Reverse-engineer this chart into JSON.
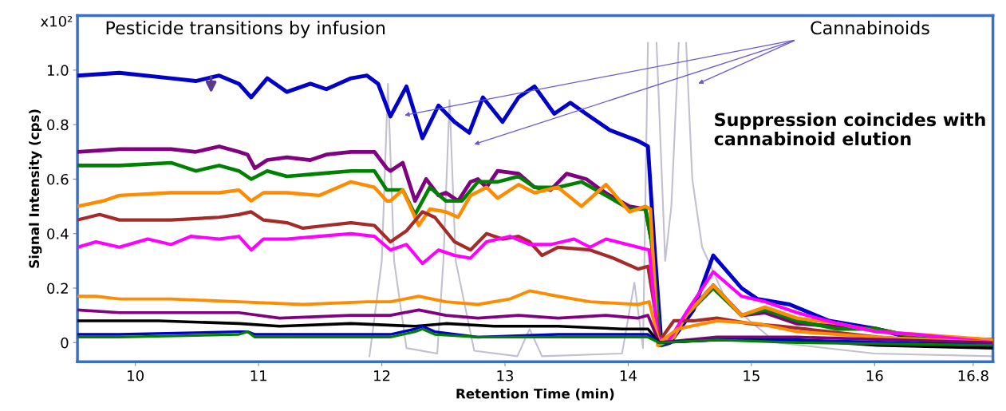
{
  "chart_data": {
    "type": "line",
    "xlabel": "Retention Time (min)",
    "ylabel": "Signal Intensity (cps)",
    "xlim": [
      9.53,
      16.96
    ],
    "xticks": [
      10,
      11,
      12,
      13,
      14,
      15,
      16,
      16.8
    ],
    "ylim": [
      -0.07,
      1.2
    ],
    "yticks": [
      0,
      0.2,
      0.4,
      0.6,
      0.8,
      {
        "value": 1,
        "label": "1.0"
      }
    ],
    "grid": false,
    "line_style": "solid",
    "annotations": [
      "x10²",
      "Pesticide transitions by infusion",
      "Cannabinoids",
      "Suppression coincides with cannabinoid elution"
    ],
    "series": [
      {
        "color": "#c0c0d0",
        "x": [
          11.9,
          12.0,
          12.05,
          12.1,
          12.2,
          12.45,
          12.5,
          12.55,
          12.6,
          12.75,
          13.1,
          13.2,
          13.3,
          13.95,
          14.05,
          14.12,
          14.16,
          14.17,
          14.22,
          14.23,
          14.3,
          14.35,
          14.41,
          14.42,
          14.46,
          14.47,
          14.52,
          14.6,
          14.8,
          15.2,
          16.0,
          16.96
        ],
        "values": [
          -0.05,
          0.3,
          0.95,
          0.3,
          -0.02,
          -0.04,
          0.3,
          0.89,
          0.3,
          -0.03,
          -0.05,
          0.05,
          -0.05,
          -0.04,
          0.22,
          -0.02,
          1.1,
          null,
          null,
          1.1,
          0.3,
          0.5,
          1.1,
          null,
          null,
          1.1,
          0.6,
          0.35,
          0.15,
          0.0,
          -0.04,
          -0.05
        ]
      },
      {
        "color": "#0000c8",
        "x": [
          9.53,
          9.87,
          10.29,
          10.49,
          10.68,
          10.84,
          10.94,
          11.07,
          11.23,
          11.42,
          11.55,
          11.75,
          11.88,
          11.97,
          12.07,
          12.2,
          12.33,
          12.46,
          12.59,
          12.71,
          12.82,
          12.98,
          13.11,
          13.24,
          13.4,
          13.53,
          13.69,
          13.85,
          14.08,
          14.16,
          14.21,
          14.27,
          14.34,
          14.53,
          14.69,
          14.92,
          15.05,
          15.31,
          15.63,
          16.02,
          16.34,
          16.96
        ],
        "values": [
          0.98,
          0.99,
          0.97,
          0.96,
          0.98,
          0.95,
          0.9,
          0.97,
          0.92,
          0.95,
          0.93,
          0.97,
          0.98,
          0.95,
          0.83,
          0.94,
          0.75,
          0.87,
          0.81,
          0.77,
          0.9,
          0.81,
          0.9,
          0.94,
          0.84,
          0.88,
          0.83,
          0.78,
          0.74,
          0.72,
          0.37,
          -0.01,
          0.0,
          0.12,
          0.32,
          0.2,
          0.16,
          0.14,
          0.08,
          0.05,
          0.01,
          -0.01
        ]
      },
      {
        "color": "#800080",
        "x": [
          9.53,
          9.87,
          10.29,
          10.49,
          10.68,
          10.84,
          10.91,
          10.97,
          11.07,
          11.23,
          11.42,
          11.55,
          11.75,
          11.94,
          12.04,
          12.07,
          12.17,
          12.27,
          12.36,
          12.46,
          12.52,
          12.62,
          12.72,
          12.78,
          12.85,
          12.94,
          13.11,
          13.24,
          13.37,
          13.5,
          13.66,
          13.75,
          13.85,
          14.01,
          14.14,
          14.19,
          14.26,
          14.34,
          14.47,
          14.69,
          14.92,
          15.11,
          15.37,
          15.7,
          16.02,
          16.34,
          16.96
        ],
        "values": [
          0.7,
          0.71,
          0.71,
          0.7,
          0.72,
          0.7,
          0.69,
          0.64,
          0.67,
          0.68,
          0.67,
          0.69,
          0.7,
          0.7,
          0.64,
          0.63,
          0.66,
          0.52,
          0.6,
          0.54,
          0.55,
          0.52,
          0.59,
          0.6,
          0.57,
          0.63,
          0.62,
          0.57,
          0.56,
          0.62,
          0.6,
          0.57,
          0.54,
          0.5,
          0.49,
          0.37,
          -0.01,
          0.01,
          0.1,
          0.21,
          0.1,
          0.11,
          0.07,
          0.06,
          0.05,
          0.02,
          0.01
        ]
      },
      {
        "color": "#008000",
        "x": [
          9.53,
          9.87,
          10.29,
          10.49,
          10.68,
          10.84,
          10.94,
          11.07,
          11.23,
          11.49,
          11.75,
          11.94,
          12.04,
          12.17,
          12.27,
          12.39,
          12.52,
          12.65,
          12.78,
          12.94,
          13.11,
          13.24,
          13.43,
          13.62,
          13.82,
          14.01,
          14.14,
          14.19,
          14.26,
          14.37,
          14.47,
          14.69,
          14.92,
          15.11,
          15.37,
          15.7,
          16.02,
          16.34,
          16.96
        ],
        "values": [
          0.65,
          0.65,
          0.66,
          0.63,
          0.65,
          0.63,
          0.6,
          0.63,
          0.61,
          0.62,
          0.63,
          0.63,
          0.56,
          0.56,
          0.47,
          0.57,
          0.52,
          0.52,
          0.59,
          0.59,
          0.61,
          0.57,
          0.57,
          0.59,
          0.54,
          0.49,
          0.49,
          0.37,
          -0.01,
          0.02,
          0.1,
          0.2,
          0.1,
          0.12,
          0.08,
          0.05,
          0.05,
          0.02,
          0.01
        ]
      },
      {
        "color": "#ff8c00",
        "x": [
          9.53,
          9.74,
          9.87,
          10.29,
          10.49,
          10.68,
          10.84,
          10.94,
          11.04,
          11.23,
          11.49,
          11.75,
          11.94,
          12.04,
          12.07,
          12.17,
          12.3,
          12.39,
          12.52,
          12.62,
          12.72,
          12.85,
          12.94,
          13.11,
          13.24,
          13.43,
          13.62,
          13.82,
          14.01,
          14.14,
          14.18,
          14.24,
          14.37,
          14.47,
          14.69,
          14.92,
          15.11,
          15.37,
          15.7,
          16.02,
          16.34,
          16.96
        ],
        "values": [
          0.5,
          0.52,
          0.54,
          0.55,
          0.55,
          0.55,
          0.56,
          0.52,
          0.55,
          0.55,
          0.54,
          0.59,
          0.57,
          0.52,
          0.52,
          0.56,
          0.43,
          0.49,
          0.48,
          0.46,
          0.54,
          0.57,
          0.53,
          0.58,
          0.55,
          0.57,
          0.5,
          0.58,
          0.48,
          0.5,
          0.49,
          -0.01,
          0.02,
          0.1,
          0.21,
          0.1,
          0.13,
          0.09,
          0.07,
          0.04,
          0.03,
          0.01
        ]
      },
      {
        "color": "#a52a2a",
        "x": [
          9.53,
          9.71,
          9.87,
          10.29,
          10.68,
          10.84,
          10.94,
          11.04,
          11.23,
          11.36,
          11.55,
          11.75,
          11.94,
          12.07,
          12.2,
          12.33,
          12.43,
          12.59,
          12.72,
          12.85,
          12.98,
          13.11,
          13.2,
          13.3,
          13.43,
          13.69,
          13.88,
          14.08,
          14.16,
          14.21,
          14.26,
          14.37,
          14.53,
          14.72,
          14.98,
          15.24,
          15.63,
          16.02,
          16.34,
          16.96
        ],
        "values": [
          0.45,
          0.47,
          0.45,
          0.45,
          0.46,
          0.47,
          0.48,
          0.45,
          0.44,
          0.42,
          0.43,
          0.44,
          0.43,
          0.37,
          0.41,
          0.48,
          0.46,
          0.37,
          0.34,
          0.4,
          0.38,
          0.39,
          0.37,
          0.32,
          0.35,
          0.34,
          0.31,
          0.27,
          0.28,
          0.14,
          0.01,
          0.08,
          0.08,
          0.09,
          0.07,
          0.06,
          0.04,
          0.02,
          0.01,
          0.0
        ]
      },
      {
        "color": "#ff00ff",
        "x": [
          9.53,
          9.68,
          9.87,
          10.1,
          10.29,
          10.45,
          10.68,
          10.84,
          10.94,
          11.04,
          11.23,
          11.49,
          11.75,
          11.94,
          12.07,
          12.2,
          12.33,
          12.46,
          12.59,
          12.72,
          12.85,
          13.04,
          13.2,
          13.37,
          13.56,
          13.69,
          13.82,
          14.08,
          14.17,
          14.24,
          14.32,
          14.47,
          14.69,
          14.92,
          15.11,
          15.37,
          15.7,
          16.02,
          16.34,
          16.96
        ],
        "values": [
          0.35,
          0.37,
          0.35,
          0.38,
          0.36,
          0.39,
          0.38,
          0.39,
          0.34,
          0.38,
          0.38,
          0.39,
          0.4,
          0.39,
          0.34,
          0.36,
          0.29,
          0.34,
          0.32,
          0.31,
          0.37,
          0.39,
          0.36,
          0.36,
          0.38,
          0.35,
          0.38,
          0.35,
          0.34,
          0.02,
          0.0,
          0.11,
          0.26,
          0.17,
          0.15,
          0.11,
          0.07,
          0.04,
          0.03,
          0.0
        ]
      },
      {
        "color": "#ff8c00",
        "x": [
          9.53,
          9.68,
          9.87,
          10.29,
          10.84,
          11.36,
          11.88,
          12.07,
          12.3,
          12.52,
          12.78,
          13.04,
          13.2,
          13.43,
          13.69,
          14.08,
          14.17,
          14.25,
          14.4,
          14.72,
          15.05,
          15.37,
          16.02,
          16.96
        ],
        "values": [
          0.17,
          0.17,
          0.16,
          0.16,
          0.15,
          0.14,
          0.15,
          0.15,
          0.17,
          0.15,
          0.14,
          0.16,
          0.19,
          0.17,
          0.15,
          0.14,
          0.15,
          0.0,
          0.05,
          0.08,
          0.07,
          0.04,
          0.02,
          0.0
        ]
      },
      {
        "color": "#800080",
        "x": [
          9.53,
          9.87,
          10.84,
          11.17,
          11.75,
          12.07,
          12.3,
          12.52,
          12.78,
          13.11,
          13.43,
          13.82,
          14.08,
          14.16,
          14.25,
          14.72,
          15.37,
          16.96
        ],
        "values": [
          0.12,
          0.11,
          0.11,
          0.09,
          0.1,
          0.1,
          0.12,
          0.1,
          0.09,
          0.1,
          0.09,
          0.1,
          0.09,
          0.1,
          0.0,
          0.02,
          0.02,
          0.0
        ]
      },
      {
        "color": "#000000",
        "x": [
          9.53,
          9.87,
          10.19,
          10.84,
          11.17,
          11.75,
          12.27,
          12.52,
          12.91,
          13.43,
          13.95,
          14.16,
          14.25,
          14.72,
          15.37,
          16.02,
          16.96
        ],
        "values": [
          0.08,
          0.08,
          0.08,
          0.07,
          0.06,
          0.07,
          0.06,
          0.07,
          0.06,
          0.06,
          0.05,
          0.05,
          0.0,
          0.01,
          0.01,
          -0.01,
          -0.02
        ]
      },
      {
        "color": "#0000c8",
        "x": [
          9.53,
          9.87,
          10.84,
          10.91,
          10.97,
          11.75,
          12.07,
          12.27,
          12.33,
          12.43,
          12.78,
          13.43,
          13.95,
          14.16,
          14.25,
          14.72,
          15.37,
          16.96
        ],
        "values": [
          0.03,
          0.03,
          0.04,
          0.04,
          0.03,
          0.03,
          0.03,
          0.05,
          0.06,
          0.04,
          0.02,
          0.03,
          0.03,
          0.03,
          0.0,
          0.01,
          0.01,
          -0.01
        ]
      },
      {
        "color": "#008000",
        "x": [
          9.53,
          9.87,
          10.84,
          10.91,
          10.97,
          11.75,
          12.07,
          12.27,
          12.33,
          12.43,
          12.78,
          13.43,
          13.95,
          14.16,
          14.25,
          14.72,
          15.37,
          16.96
        ],
        "values": [
          0.02,
          0.02,
          0.03,
          0.04,
          0.02,
          0.02,
          0.02,
          0.04,
          0.05,
          0.03,
          0.02,
          0.02,
          0.02,
          0.02,
          0.0,
          0.01,
          0.0,
          -0.01
        ]
      }
    ]
  }
}
